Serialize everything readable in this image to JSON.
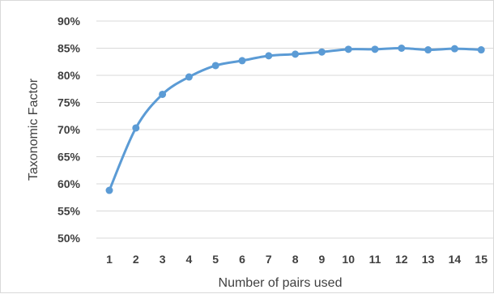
{
  "chart_data": {
    "type": "line",
    "title": "",
    "xlabel": "Number of pairs used",
    "ylabel": "Taxonomic Factor",
    "x": [
      1,
      2,
      3,
      4,
      5,
      6,
      7,
      8,
      9,
      10,
      11,
      12,
      13,
      14,
      15
    ],
    "x_tick_labels": [
      "1",
      "2",
      "3",
      "4",
      "5",
      "6",
      "7",
      "8",
      "9",
      "10",
      "11",
      "12",
      "13",
      "14",
      "15"
    ],
    "y_tick_labels": [
      "50%",
      "55%",
      "60%",
      "65%",
      "70%",
      "75%",
      "80%",
      "85%",
      "90%"
    ],
    "y_ticks": [
      50,
      55,
      60,
      65,
      70,
      75,
      80,
      85,
      90
    ],
    "ylim": [
      50,
      90
    ],
    "y_unit": "%",
    "grid": true,
    "legend": "none",
    "series": [
      {
        "values": [
          58.8,
          70.3,
          76.5,
          79.7,
          81.8,
          82.7,
          83.6,
          83.9,
          84.3,
          84.8,
          84.8,
          85.0,
          84.7,
          84.9,
          84.7
        ],
        "color": "#5b9bd5"
      }
    ]
  },
  "colors": {
    "line": "#5b9bd5",
    "grid": "#d9d9d9",
    "text": "#404040"
  }
}
